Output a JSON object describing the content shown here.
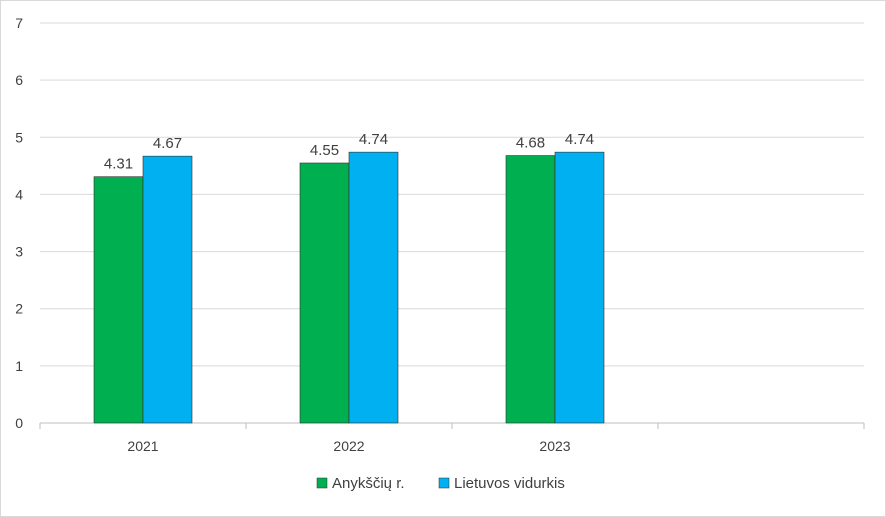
{
  "chart_data": {
    "type": "bar",
    "categories": [
      "2021",
      "2022",
      "2023"
    ],
    "category_slots": 4,
    "series": [
      {
        "name": "Anykščių r.",
        "color": "#00b050",
        "values": [
          4.31,
          4.55,
          4.68
        ],
        "labels": [
          "4.31",
          "4.55",
          "4.68"
        ]
      },
      {
        "name": "Lietuvos vidurkis",
        "color": "#00b0f0",
        "values": [
          4.67,
          4.74,
          4.74
        ],
        "labels": [
          "4.67",
          "4.74",
          "4.74"
        ]
      }
    ],
    "y_ticks": [
      "0",
      "1",
      "2",
      "3",
      "4",
      "5",
      "6",
      "7"
    ],
    "ylim": [
      0,
      7
    ],
    "grid": true,
    "legend_position": "bottom"
  }
}
